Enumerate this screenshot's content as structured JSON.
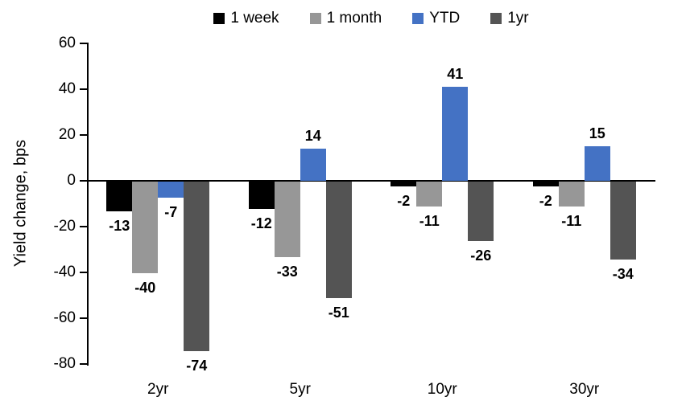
{
  "chart_data": {
    "type": "bar",
    "title": "",
    "ylabel": "Yield change, bps",
    "xlabel": "",
    "categories": [
      "2yr",
      "5yr",
      "10yr",
      "30yr"
    ],
    "series": [
      {
        "name": "1 week",
        "color": "#000000",
        "values": [
          -13,
          -12,
          -2,
          -2
        ]
      },
      {
        "name": "1 month",
        "color": "#979797",
        "values": [
          -40,
          -33,
          -11,
          -11
        ]
      },
      {
        "name": "YTD",
        "color": "#4472C4",
        "values": [
          -7,
          14,
          41,
          15
        ]
      },
      {
        "name": "1yr",
        "color": "#545454",
        "values": [
          -74,
          -51,
          -26,
          -34
        ]
      }
    ],
    "ylim": [
      -80,
      60
    ],
    "yticks": [
      60,
      40,
      20,
      0,
      -20,
      -40,
      -60,
      -80
    ],
    "grid": false,
    "legend_position": "top",
    "data_labels": true,
    "axis_color": "#000000",
    "background_color": "#ffffff"
  }
}
